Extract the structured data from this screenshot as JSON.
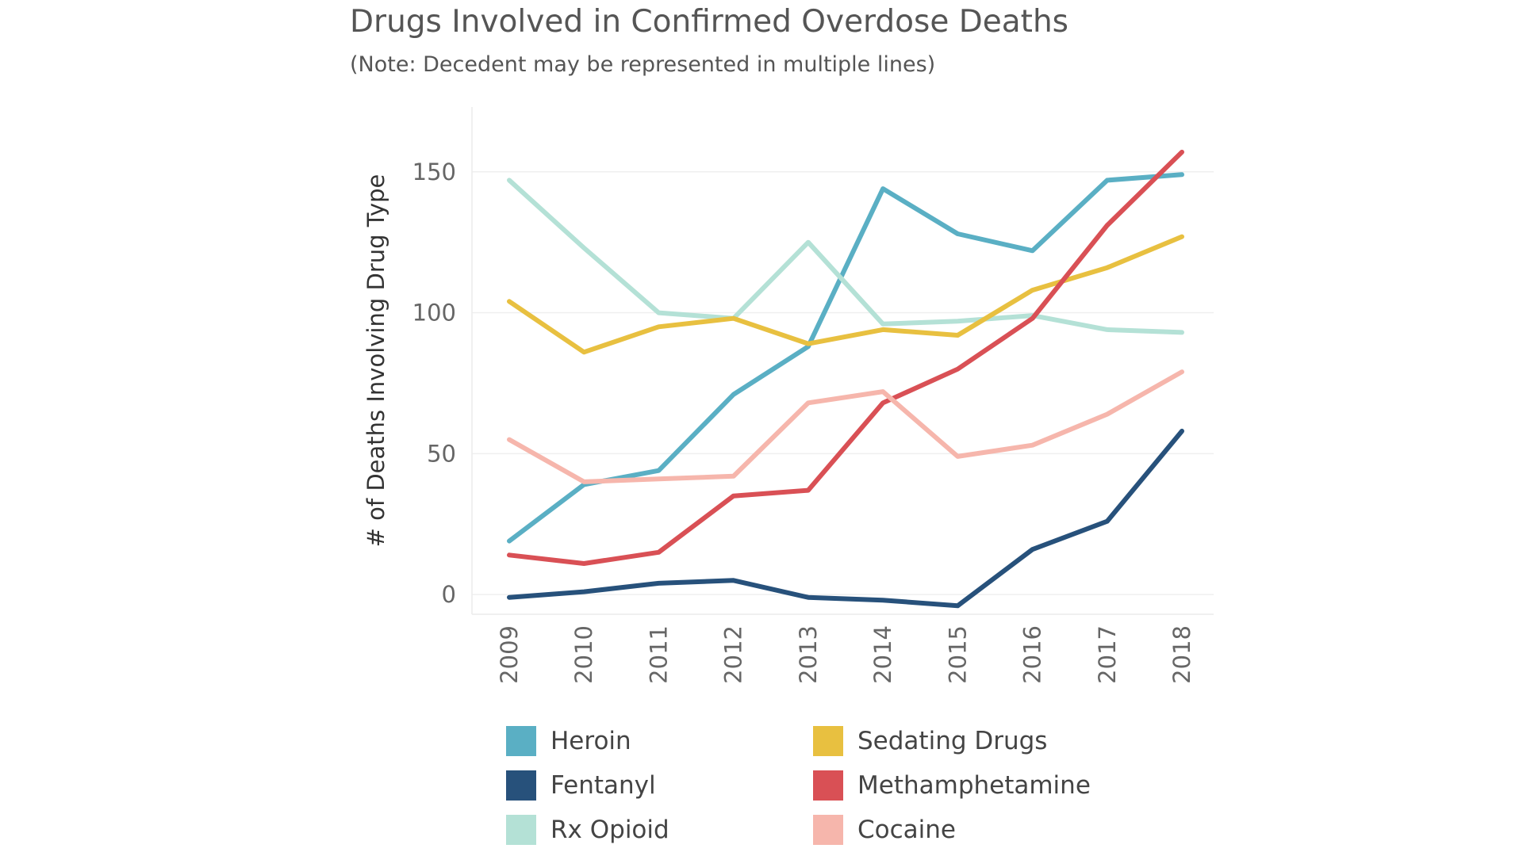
{
  "chart_data": {
    "type": "line",
    "title": "Drugs Involved in Confirmed Overdose Deaths",
    "subtitle": "(Note: Decedent may be represented in multiple lines)",
    "ylabel": "# of Deaths Involving Drug Type",
    "xlabel": "",
    "ylim": [
      -7,
      173
    ],
    "yticks": [
      0,
      50,
      100,
      150
    ],
    "categories": [
      "2009",
      "2010",
      "2011",
      "2012",
      "2013",
      "2014",
      "2015",
      "2016",
      "2017",
      "2018"
    ],
    "grid": true,
    "legend_position": "bottom",
    "series": [
      {
        "name": "Heroin",
        "color": "#5aafc4",
        "values": [
          19,
          39,
          44,
          71,
          88,
          144,
          128,
          122,
          147,
          149
        ]
      },
      {
        "name": "Fentanyl",
        "color": "#27517b",
        "values": [
          -1,
          1,
          4,
          5,
          -1,
          -2,
          -4,
          16,
          26,
          58
        ]
      },
      {
        "name": "Rx Opioid",
        "color": "#b4e1d6",
        "values": [
          147,
          123,
          100,
          98,
          125,
          96,
          97,
          99,
          94,
          93
        ]
      },
      {
        "name": "Sedating Drugs",
        "color": "#e8c040",
        "values": [
          104,
          86,
          95,
          98,
          89,
          94,
          92,
          108,
          116,
          127
        ]
      },
      {
        "name": "Methamphetamine",
        "color": "#d95055",
        "values": [
          14,
          11,
          15,
          35,
          37,
          68,
          80,
          98,
          131,
          157
        ]
      },
      {
        "name": "Cocaine",
        "color": "#f6b6ac",
        "values": [
          55,
          40,
          41,
          42,
          68,
          72,
          49,
          53,
          64,
          79
        ]
      }
    ]
  }
}
